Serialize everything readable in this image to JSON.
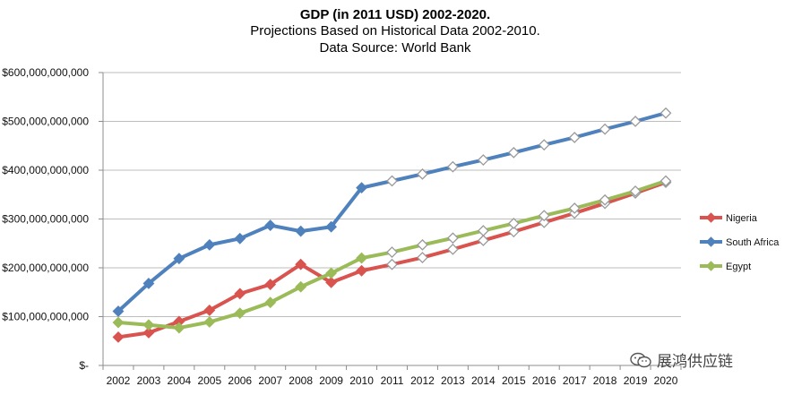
{
  "chart_data": {
    "type": "line",
    "title": "GDP (in 2011 USD) 2002-2020.",
    "subtitle_lines": [
      "Projections Based on Historical Data 2002-2010.",
      "Data Source: World Bank"
    ],
    "xlabel": "",
    "ylabel": "",
    "ylim": [
      0,
      600000000000
    ],
    "y_ticks": [
      0,
      100000000000,
      200000000000,
      300000000000,
      400000000000,
      500000000000,
      600000000000
    ],
    "y_tick_labels": [
      "$-",
      "$100,000,000,000",
      "$200,000,000,000",
      "$300,000,000,000",
      "$400,000,000,000",
      "$500,000,000,000",
      "$600,000,000,000"
    ],
    "categories": [
      "2002",
      "2003",
      "2004",
      "2005",
      "2006",
      "2007",
      "2008",
      "2009",
      "2010",
      "2011",
      "2012",
      "2013",
      "2014",
      "2015",
      "2016",
      "2017",
      "2018",
      "2019",
      "2020"
    ],
    "grid": true,
    "legend_position": "right",
    "historical_through": "2010",
    "series": [
      {
        "name": "Nigeria",
        "color": "#d9534f",
        "values": [
          58000000000,
          67000000000,
          90000000000,
          113000000000,
          147000000000,
          166000000000,
          207000000000,
          170000000000,
          194000000000,
          207000000000,
          221000000000,
          238000000000,
          256000000000,
          274000000000,
          293000000000,
          312000000000,
          332000000000,
          353000000000,
          375000000000
        ]
      },
      {
        "name": "South Africa",
        "color": "#4f81bd",
        "values": [
          111000000000,
          168000000000,
          219000000000,
          247000000000,
          260000000000,
          287000000000,
          275000000000,
          284000000000,
          364000000000,
          378000000000,
          392000000000,
          407000000000,
          421000000000,
          436000000000,
          452000000000,
          467000000000,
          484000000000,
          500000000000,
          517000000000
        ]
      },
      {
        "name": "Egypt",
        "color": "#9bbb59",
        "values": [
          88000000000,
          83000000000,
          77000000000,
          89000000000,
          107000000000,
          129000000000,
          161000000000,
          189000000000,
          220000000000,
          232000000000,
          247000000000,
          261000000000,
          276000000000,
          291000000000,
          307000000000,
          322000000000,
          339000000000,
          357000000000,
          378000000000
        ]
      }
    ]
  },
  "watermark": {
    "text": "展鸿供应链",
    "icon": "wechat-icon"
  }
}
